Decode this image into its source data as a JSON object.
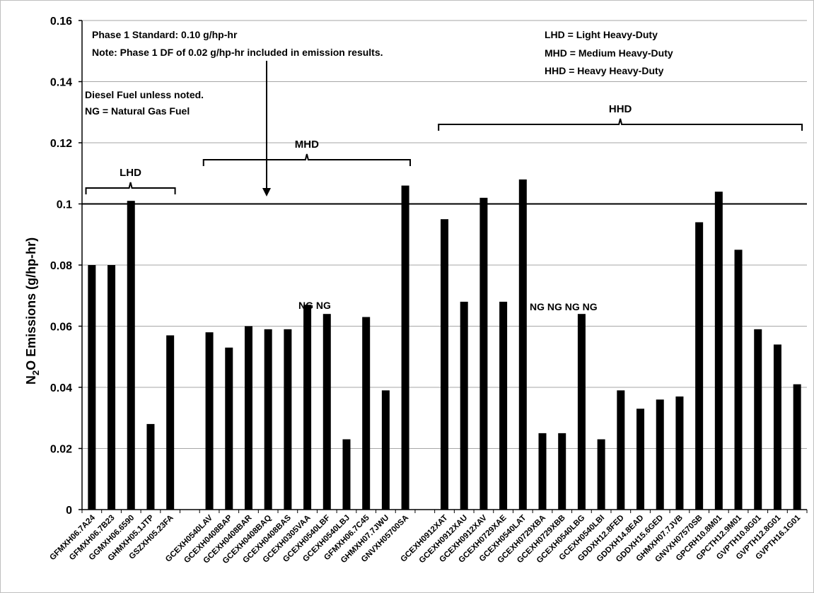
{
  "chart_data": {
    "type": "bar",
    "title": "",
    "ylabel_main": "N",
    "ylabel_sub": "2",
    "ylabel_rest": "O Emissions (g/hp-hr)",
    "ylim": [
      0,
      0.16
    ],
    "yticks": [
      "0",
      "0.02",
      "0.04",
      "0.06",
      "0.08",
      "0.1",
      "0.12",
      "0.14",
      "0.16"
    ],
    "grid": true,
    "bar_color": "#000000",
    "categories": [
      "GFMXH06.7A24",
      "GFMXH06.7B23",
      "GGMXH06.6590",
      "GHMXH05.1JTP",
      "GSZXH05.23FA",
      "",
      "GCEXH0540LAV",
      "GCEXH0408BAP",
      "GCEXH0408BAR",
      "GCEXH0408BAQ",
      "GCEXH0408BAS",
      "GCEXH0305VAA",
      "GCEXH0540LBF",
      "GCEXH0540LBJ",
      "GFMXH06.7C45",
      "GHMXH07.7JWU",
      "GNVXH05700SA",
      "",
      "GCEXH0912XAT",
      "GCEXH0912XAU",
      "GCEXH0912XAV",
      "GCEXH0729XAE",
      "GCEXH0540LAT",
      "GCEXH0729XBA",
      "GCEXH0729XBB",
      "GCEXH0540LBG",
      "GCEXH0540LBI",
      "GDDXH12.8FED",
      "GDDXH14.8EAD",
      "GDDXH15.6GED",
      "GHMXH07.7JVB",
      "GNVXH07570SB",
      "GPCRH10.8M01",
      "GPCTH12.9M01",
      "GVPTH10.8G01",
      "GVPTH12.8G01",
      "GVPTH16.1G01"
    ],
    "values": [
      0.08,
      0.08,
      0.101,
      0.028,
      0.057,
      null,
      0.058,
      0.053,
      0.06,
      0.059,
      0.059,
      0.067,
      0.064,
      0.023,
      0.063,
      0.039,
      0.106,
      null,
      0.095,
      0.068,
      0.102,
      0.068,
      0.108,
      0.025,
      0.025,
      0.064,
      0.023,
      0.039,
      0.033,
      0.036,
      0.037,
      0.094,
      0.104,
      0.085,
      0.059,
      0.054,
      0.041
    ],
    "standard_line": 0.1,
    "annotations": {
      "phase1_line1": "Phase 1 Standard: 0.10 g/hp-hr",
      "phase1_line2": "Note: Phase 1 DF of 0.02 g/hp-hr included in emission results.",
      "fuel_line1": "Diesel Fuel unless noted.",
      "fuel_line2": "NG = Natural Gas Fuel",
      "legend_lhd": "LHD = Light Heavy-Duty",
      "legend_mhd": "MHD = Medium Heavy-Duty",
      "legend_hhd": "HHD = Heavy Heavy-Duty",
      "ng_mhd": "NG NG",
      "ng_hhd": "NG NG NG NG"
    },
    "groups": [
      {
        "label": "LHD",
        "from": 0,
        "to": 4
      },
      {
        "label": "MHD",
        "from": 6,
        "to": 16
      },
      {
        "label": "HHD",
        "from": 18,
        "to": 36
      }
    ]
  }
}
